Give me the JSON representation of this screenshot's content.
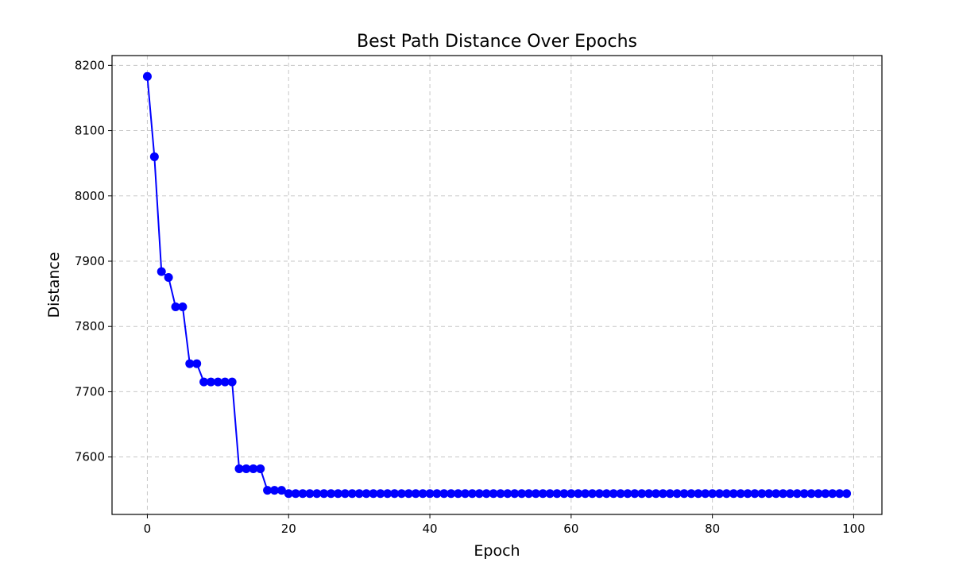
{
  "chart_data": {
    "type": "line",
    "title": "Best Path Distance Over Epochs",
    "xlabel": "Epoch",
    "ylabel": "Distance",
    "xlim": [
      -5,
      104
    ],
    "ylim": [
      7512,
      8215
    ],
    "xticks": [
      0,
      20,
      40,
      60,
      80,
      100
    ],
    "yticks": [
      7600,
      7700,
      7800,
      7900,
      8000,
      8100,
      8200
    ],
    "grid": true,
    "line_color": "#0000ff",
    "marker": "circle",
    "series": [
      {
        "x": [
          0,
          1,
          2,
          3,
          4,
          5,
          6,
          7,
          8,
          9,
          10,
          11,
          12,
          13,
          14,
          15,
          16,
          17,
          18,
          19,
          20,
          21,
          22,
          23,
          24,
          25,
          26,
          27,
          28,
          29,
          30,
          31,
          32,
          33,
          34,
          35,
          36,
          37,
          38,
          39,
          40,
          41,
          42,
          43,
          44,
          45,
          46,
          47,
          48,
          49,
          50,
          51,
          52,
          53,
          54,
          55,
          56,
          57,
          58,
          59,
          60,
          61,
          62,
          63,
          64,
          65,
          66,
          67,
          68,
          69,
          70,
          71,
          72,
          73,
          74,
          75,
          76,
          77,
          78,
          79,
          80,
          81,
          82,
          83,
          84,
          85,
          86,
          87,
          88,
          89,
          90,
          91,
          92,
          93,
          94,
          95,
          96,
          97,
          98,
          99
        ],
        "y": [
          8183,
          8060,
          7884,
          7875,
          7830,
          7830,
          7743,
          7743,
          7715,
          7715,
          7715,
          7715,
          7715,
          7582,
          7582,
          7582,
          7582,
          7549,
          7549,
          7549,
          7544,
          7544,
          7544,
          7544,
          7544,
          7544,
          7544,
          7544,
          7544,
          7544,
          7544,
          7544,
          7544,
          7544,
          7544,
          7544,
          7544,
          7544,
          7544,
          7544,
          7544,
          7544,
          7544,
          7544,
          7544,
          7544,
          7544,
          7544,
          7544,
          7544,
          7544,
          7544,
          7544,
          7544,
          7544,
          7544,
          7544,
          7544,
          7544,
          7544,
          7544,
          7544,
          7544,
          7544,
          7544,
          7544,
          7544,
          7544,
          7544,
          7544,
          7544,
          7544,
          7544,
          7544,
          7544,
          7544,
          7544,
          7544,
          7544,
          7544,
          7544,
          7544,
          7544,
          7544,
          7544,
          7544,
          7544,
          7544,
          7544,
          7544,
          7544,
          7544,
          7544,
          7544,
          7544,
          7544,
          7544,
          7544,
          7544,
          7544
        ]
      }
    ]
  }
}
